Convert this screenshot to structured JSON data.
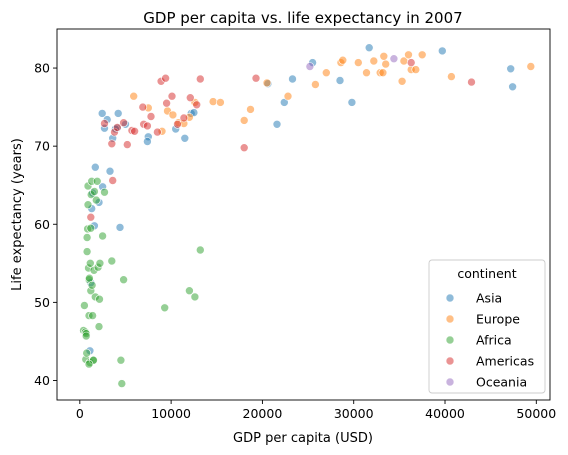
{
  "chart_data": {
    "type": "scatter",
    "title": "GDP per capita vs. life expectancy in 2007",
    "xlabel": "GDP per capita (USD)",
    "ylabel": "Life expectancy (years)",
    "xlim": [
      -2500,
      51500
    ],
    "ylim": [
      37.5,
      85
    ],
    "xticks": [
      0,
      10000,
      20000,
      30000,
      40000,
      50000
    ],
    "xtick_labels": [
      "0",
      "10000",
      "20000",
      "30000",
      "40000",
      "50000"
    ],
    "yticks": [
      40,
      50,
      60,
      70,
      80
    ],
    "ytick_labels": [
      "40",
      "50",
      "60",
      "70",
      "80"
    ],
    "grid": false,
    "legend": {
      "title": "continent",
      "placement": "lower-right"
    },
    "series": [
      {
        "name": "Asia",
        "color": "#1f77b4",
        "points": [
          [
            2450,
            74.2
          ],
          [
            3000,
            73.4
          ],
          [
            3300,
            66.8
          ],
          [
            4100,
            72.3
          ],
          [
            4200,
            74.2
          ],
          [
            5000,
            72.8
          ],
          [
            3600,
            71.0
          ],
          [
            3900,
            72.2
          ],
          [
            4400,
            59.6
          ],
          [
            2500,
            64.8
          ],
          [
            2100,
            62.8
          ],
          [
            1700,
            67.3
          ],
          [
            1400,
            64.0
          ],
          [
            1300,
            62.0
          ],
          [
            1600,
            59.8
          ],
          [
            1200,
            52.5
          ],
          [
            1100,
            43.8
          ],
          [
            2700,
            72.3
          ],
          [
            7500,
            71.2
          ],
          [
            7400,
            70.6
          ],
          [
            10500,
            72.2
          ],
          [
            11500,
            71.0
          ],
          [
            12200,
            74.2
          ],
          [
            12500,
            74.3
          ],
          [
            21600,
            72.8
          ],
          [
            22400,
            75.6
          ],
          [
            23300,
            78.6
          ],
          [
            25500,
            80.7
          ],
          [
            28500,
            78.4
          ],
          [
            29800,
            75.6
          ],
          [
            31700,
            82.6
          ],
          [
            39700,
            82.2
          ],
          [
            47200,
            79.9
          ],
          [
            47400,
            77.6
          ],
          [
            20600,
            78.0
          ]
        ]
      },
      {
        "name": "Europe",
        "color": "#ff7f0e",
        "points": [
          [
            5900,
            76.4
          ],
          [
            7500,
            74.9
          ],
          [
            9000,
            71.9
          ],
          [
            9600,
            74.5
          ],
          [
            10200,
            74.0
          ],
          [
            10800,
            73.0
          ],
          [
            11400,
            72.9
          ],
          [
            12000,
            73.7
          ],
          [
            12600,
            75.6
          ],
          [
            14600,
            75.7
          ],
          [
            15400,
            75.6
          ],
          [
            18000,
            73.3
          ],
          [
            18700,
            74.7
          ],
          [
            20500,
            78.1
          ],
          [
            22800,
            76.4
          ],
          [
            25800,
            77.9
          ],
          [
            27000,
            79.4
          ],
          [
            28600,
            80.7
          ],
          [
            28800,
            81.0
          ],
          [
            30500,
            80.7
          ],
          [
            31400,
            79.4
          ],
          [
            32900,
            79.4
          ],
          [
            33200,
            79.4
          ],
          [
            33500,
            80.5
          ],
          [
            35300,
            78.3
          ],
          [
            35500,
            80.9
          ],
          [
            36000,
            81.7
          ],
          [
            36300,
            79.8
          ],
          [
            36800,
            79.8
          ],
          [
            37500,
            81.7
          ],
          [
            40700,
            78.9
          ],
          [
            49400,
            80.2
          ],
          [
            33300,
            81.5
          ],
          [
            32200,
            80.9
          ]
        ]
      },
      {
        "name": "Africa",
        "color": "#2ca02c",
        "points": [
          [
            400,
            46.4
          ],
          [
            500,
            49.6
          ],
          [
            600,
            46.2
          ],
          [
            700,
            46.0
          ],
          [
            650,
            42.7
          ],
          [
            750,
            43.5
          ],
          [
            800,
            56.5
          ],
          [
            800,
            58.3
          ],
          [
            850,
            59.4
          ],
          [
            900,
            62.5
          ],
          [
            900,
            64.9
          ],
          [
            950,
            54.4
          ],
          [
            1000,
            52.9
          ],
          [
            1000,
            48.3
          ],
          [
            1050,
            53.1
          ],
          [
            1100,
            42.3
          ],
          [
            1150,
            55.0
          ],
          [
            1200,
            51.5
          ],
          [
            1200,
            59.5
          ],
          [
            1250,
            63.8
          ],
          [
            1300,
            65.5
          ],
          [
            1350,
            52.2
          ],
          [
            1400,
            48.3
          ],
          [
            1450,
            42.6
          ],
          [
            1500,
            42.6
          ],
          [
            1550,
            54.1
          ],
          [
            1600,
            64.2
          ],
          [
            1700,
            50.7
          ],
          [
            1800,
            63.1
          ],
          [
            1900,
            65.5
          ],
          [
            2000,
            54.5
          ],
          [
            2100,
            46.9
          ],
          [
            2150,
            50.4
          ],
          [
            2200,
            55.0
          ],
          [
            2500,
            58.5
          ],
          [
            2700,
            64.1
          ],
          [
            3500,
            55.3
          ],
          [
            4500,
            42.6
          ],
          [
            4600,
            39.6
          ],
          [
            4800,
            52.9
          ],
          [
            9300,
            49.3
          ],
          [
            12000,
            51.5
          ],
          [
            12600,
            50.7
          ],
          [
            13200,
            56.7
          ],
          [
            700,
            45.7
          ],
          [
            1000,
            42.1
          ]
        ]
      },
      {
        "name": "Americas",
        "color": "#d62728",
        "points": [
          [
            1200,
            60.9
          ],
          [
            2700,
            72.9
          ],
          [
            3500,
            70.3
          ],
          [
            3600,
            65.6
          ],
          [
            3800,
            71.8
          ],
          [
            4100,
            72.4
          ],
          [
            5200,
            70.2
          ],
          [
            5700,
            72.0
          ],
          [
            6000,
            71.9
          ],
          [
            6900,
            75.0
          ],
          [
            7000,
            72.8
          ],
          [
            7400,
            72.6
          ],
          [
            7800,
            73.8
          ],
          [
            8500,
            71.8
          ],
          [
            8900,
            78.3
          ],
          [
            9400,
            78.7
          ],
          [
            9500,
            75.5
          ],
          [
            10100,
            76.4
          ],
          [
            10700,
            72.8
          ],
          [
            11400,
            73.6
          ],
          [
            12100,
            76.2
          ],
          [
            12800,
            75.3
          ],
          [
            13200,
            78.6
          ],
          [
            18000,
            69.8
          ],
          [
            19300,
            78.7
          ],
          [
            36300,
            80.7
          ],
          [
            42900,
            78.2
          ],
          [
            4800,
            73.0
          ]
        ]
      },
      {
        "name": "Oceania",
        "color": "#9467bd",
        "points": [
          [
            25200,
            80.2
          ],
          [
            34400,
            81.2
          ]
        ]
      }
    ]
  }
}
